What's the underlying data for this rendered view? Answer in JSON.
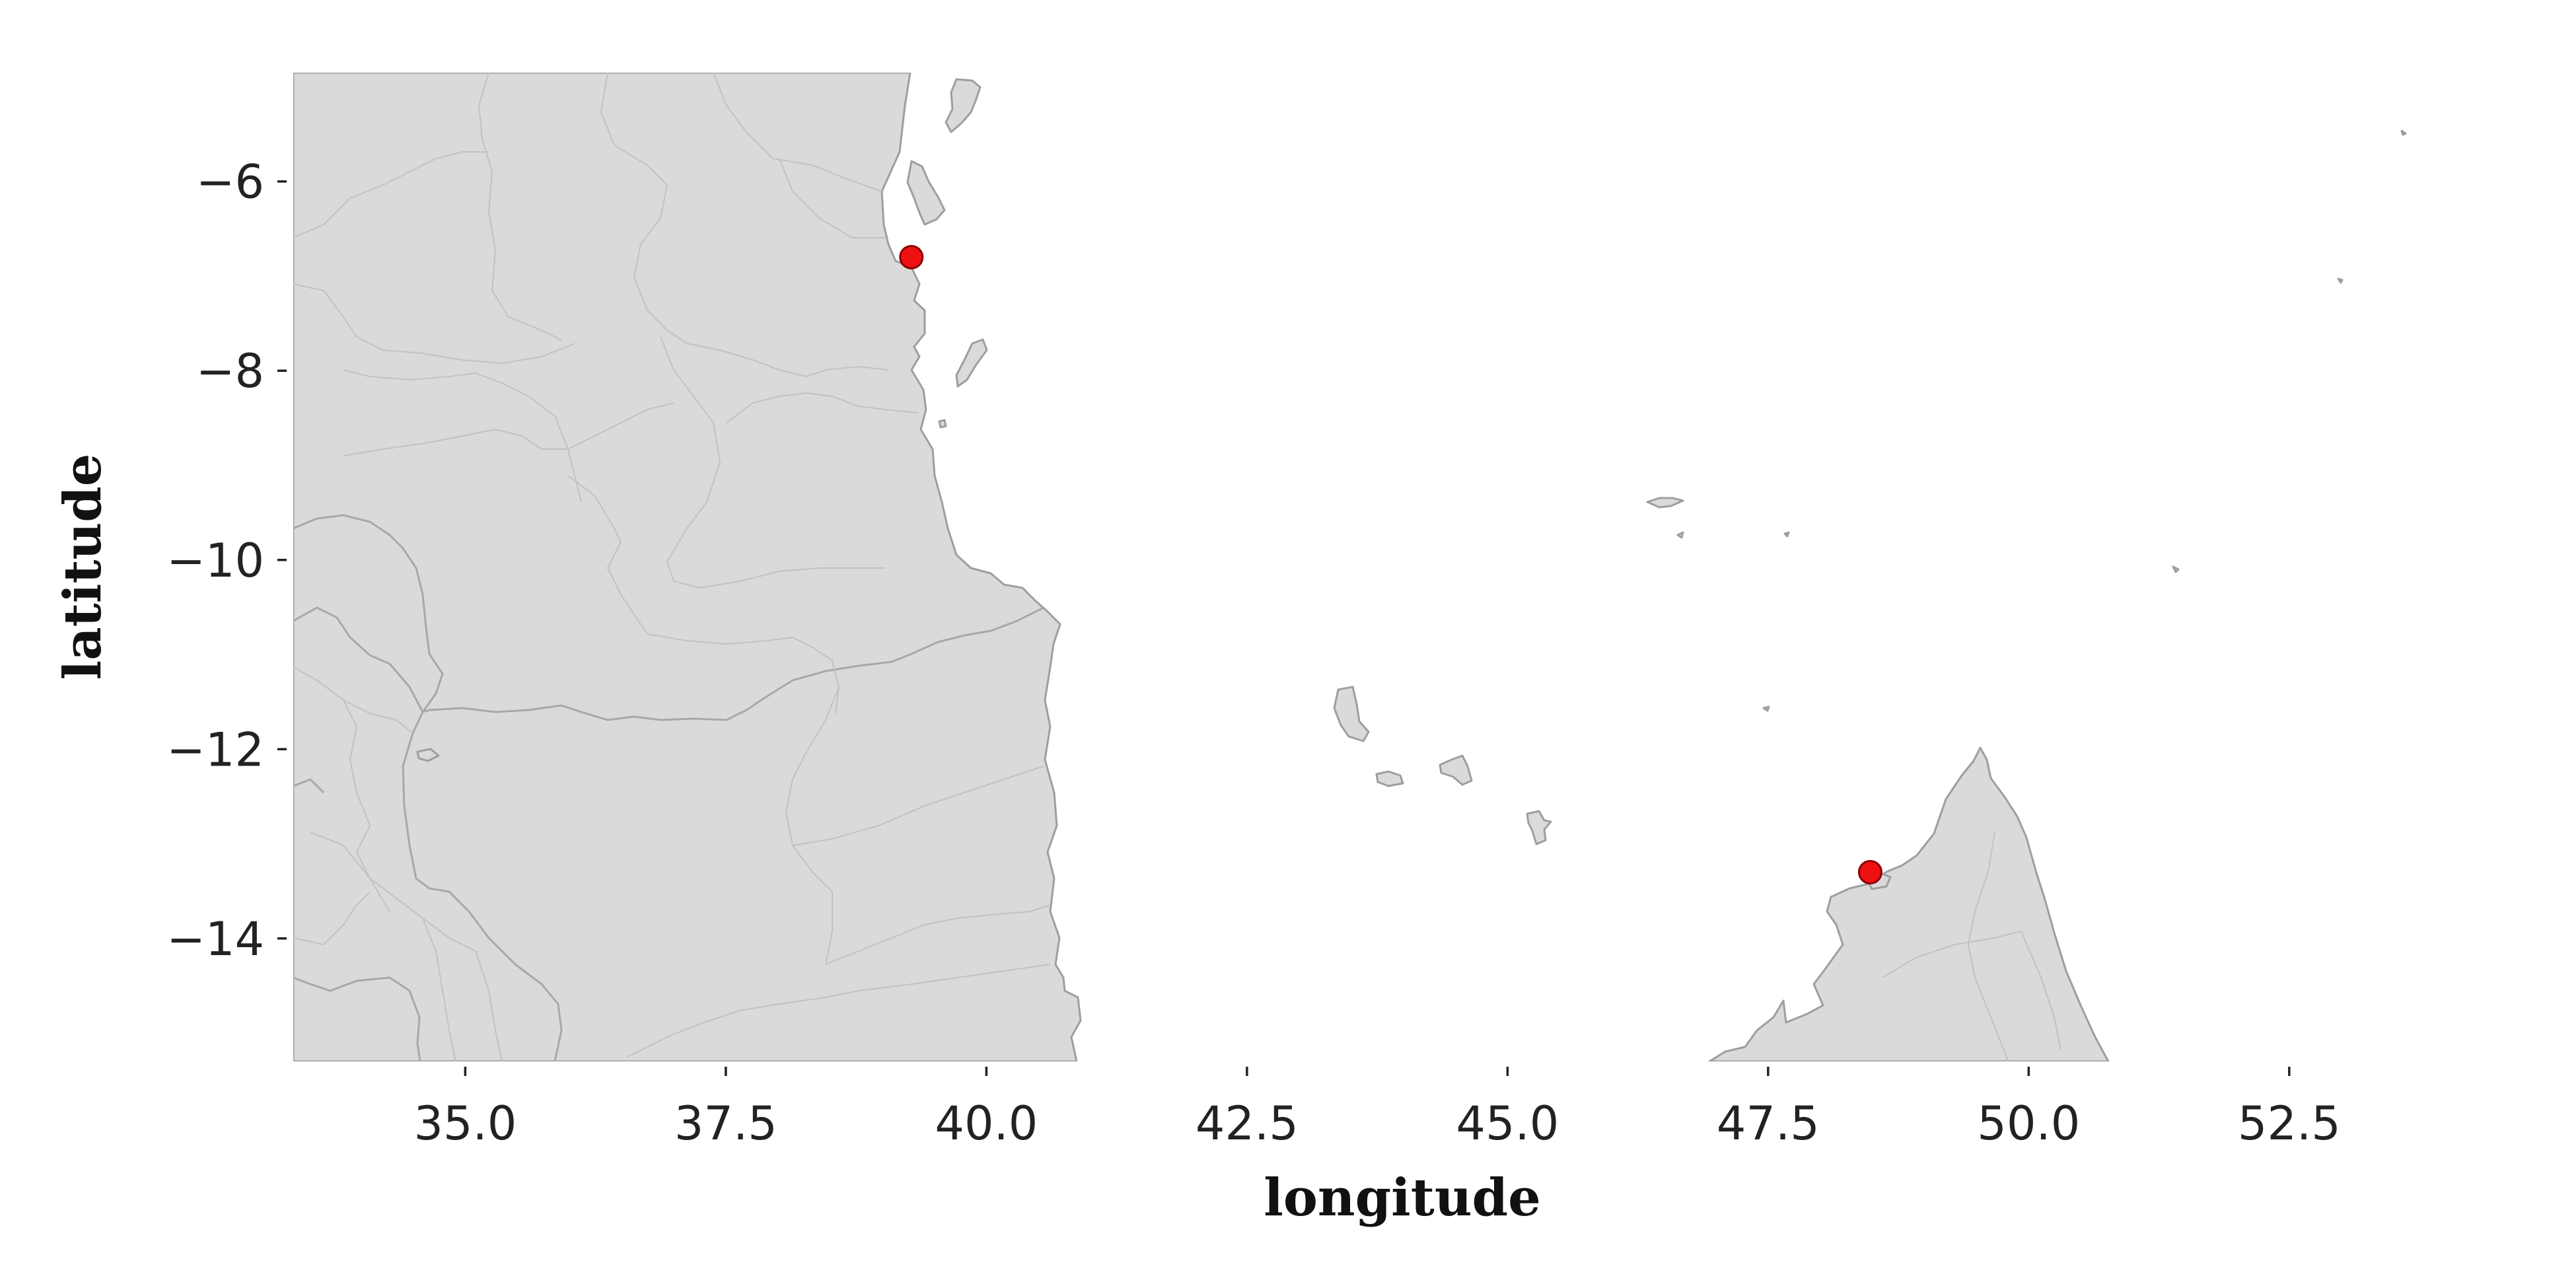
{
  "chart_data": {
    "type": "scatter",
    "xlabel": "longitude",
    "ylabel": "latitude",
    "xlim": [
      33.35,
      54.25
    ],
    "ylim": [
      -15.3,
      -4.85
    ],
    "xticks": [
      35.0,
      37.5,
      40.0,
      42.5,
      45.0,
      47.5,
      50.0,
      52.5
    ],
    "yticks": [
      -6,
      -8,
      -10,
      -12,
      -14
    ],
    "grid": false,
    "legend": "none",
    "land_color": "#dadada",
    "coast_color": "#9e9e9e",
    "marker_color": "#ee1111",
    "points": [
      {
        "x": 39.28,
        "y": -6.8
      },
      {
        "x": 48.48,
        "y": -13.3
      }
    ]
  }
}
